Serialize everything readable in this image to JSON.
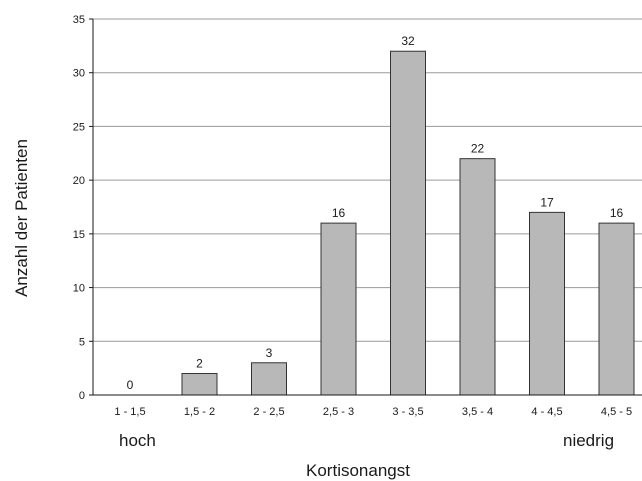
{
  "chart_data": {
    "type": "bar",
    "categories": [
      "1 - 1,5",
      "1,5 - 2",
      "2 - 2,5",
      "2,5 - 3",
      "3 - 3,5",
      "3,5 - 4",
      "4 - 4,5",
      "4,5 - 5"
    ],
    "values": [
      0,
      2,
      3,
      16,
      32,
      22,
      17,
      16
    ],
    "data_labels": [
      "0",
      "2",
      "3",
      "16",
      "32",
      "22",
      "17",
      "16"
    ],
    "xlabel": "Kortisonangst",
    "ylabel": "Anzahl der Patienten",
    "ylim": [
      0,
      35
    ],
    "yticks": [
      0,
      5,
      10,
      15,
      20,
      25,
      30,
      35
    ],
    "x_end_labels": {
      "left": "hoch",
      "right": "niedrig"
    },
    "grid": true,
    "bar_color": "#b8b8b8",
    "bar_edge_color": "#333333",
    "grid_color": "#9a9a9a"
  }
}
